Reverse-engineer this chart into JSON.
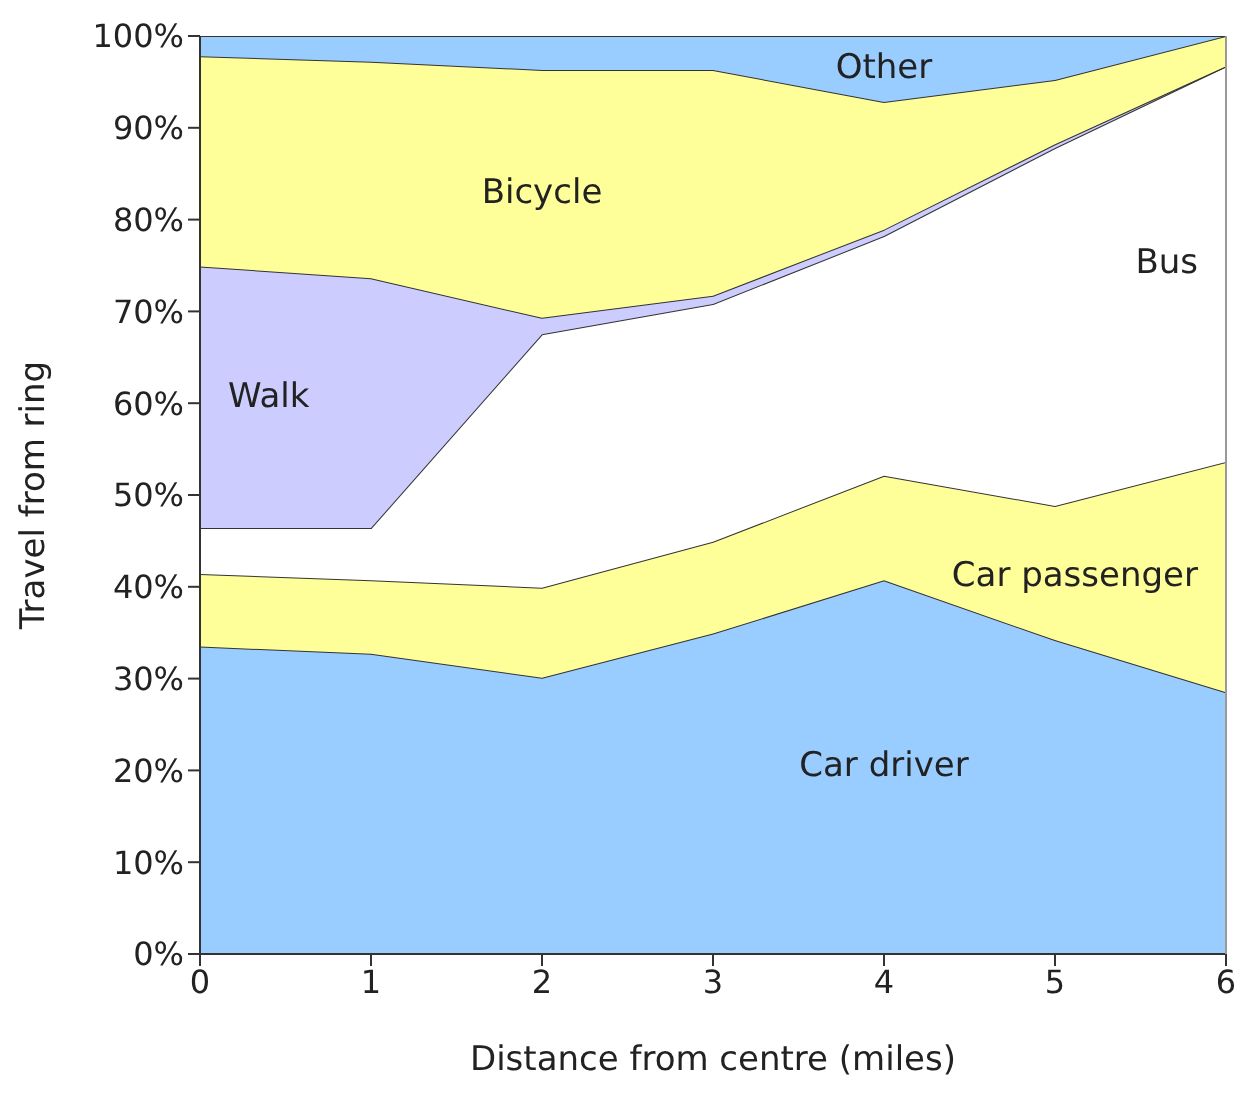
{
  "chart_data": {
    "type": "area",
    "stacked": true,
    "xlabel": "Distance from centre (miles)",
    "ylabel": "Travel from ring",
    "x": [
      0,
      1,
      2,
      3,
      4,
      5,
      6
    ],
    "xlim": [
      0,
      6
    ],
    "xticks": [
      0,
      1,
      2,
      3,
      4,
      5,
      6
    ],
    "ylim": [
      0,
      100
    ],
    "yticks": [
      {
        "value": 0,
        "label": "0%"
      },
      {
        "value": 10,
        "label": "10%"
      },
      {
        "value": 20,
        "label": "20%"
      },
      {
        "value": 30,
        "label": "30%"
      },
      {
        "value": 40,
        "label": "40%"
      },
      {
        "value": 50,
        "label": "50%"
      },
      {
        "value": 60,
        "label": "60%"
      },
      {
        "value": 70,
        "label": "70%"
      },
      {
        "value": 80,
        "label": "80%"
      },
      {
        "value": 90,
        "label": "90%"
      },
      {
        "value": 100,
        "label": "100%"
      }
    ],
    "series": [
      {
        "name": "Car driver",
        "color": "#99ccff",
        "values": [
          33.5,
          32.7,
          30.1,
          34.9,
          40.7,
          34.2,
          28.5
        ]
      },
      {
        "name": "Car passenger",
        "color": "#ffff99",
        "values": [
          7.9,
          8.0,
          9.8,
          10.0,
          11.4,
          14.6,
          25.1
        ]
      },
      {
        "name": "Bus",
        "color": "#ffffff",
        "values": [
          5.0,
          5.7,
          27.6,
          25.9,
          26.1,
          39.0,
          43.1
        ]
      },
      {
        "name": "Walk",
        "color": "#ccccff",
        "values": [
          28.5,
          27.2,
          1.8,
          0.9,
          0.7,
          0.4,
          0
        ]
      },
      {
        "name": "Bicycle",
        "color": "#ffff99",
        "values": [
          22.9,
          23.6,
          27.0,
          24.6,
          13.9,
          7.0,
          3.3
        ]
      },
      {
        "name": "Other",
        "color": "#99ccff",
        "values": [
          2.2,
          2.8,
          3.7,
          3.7,
          7.2,
          4.8,
          0
        ]
      }
    ],
    "grid": false
  }
}
